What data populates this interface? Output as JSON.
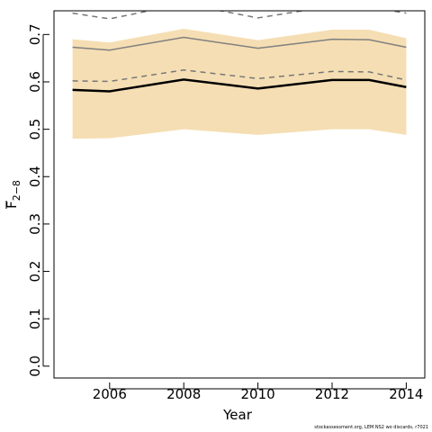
{
  "chart_data": {
    "type": "area",
    "xlabel": "Year",
    "ylabel_main": "F",
    "ylabel_sub": "2−8",
    "xlim": [
      2004.5,
      2014.5
    ],
    "ylim": [
      -0.025,
      0.75
    ],
    "xticks": [
      "2006",
      "2008",
      "2010",
      "2012",
      "2014"
    ],
    "yticks": [
      "0.0",
      "0.1",
      "0.2",
      "0.3",
      "0.4",
      "0.5",
      "0.6",
      "0.7"
    ],
    "x": [
      2005,
      2006,
      2008,
      2010,
      2012,
      2013,
      2014
    ],
    "band": {
      "lower": [
        0.48,
        0.481,
        0.5,
        0.488,
        0.5,
        0.5,
        0.488
      ],
      "upper": [
        0.69,
        0.683,
        0.712,
        0.688,
        0.71,
        0.71,
        0.692
      ],
      "color": "#f5deb3"
    },
    "series": [
      {
        "values": [
          0.583,
          0.58,
          0.605,
          0.586,
          0.604,
          0.604,
          0.589
        ],
        "color": "#000000",
        "style": "solid",
        "width": 2.5
      },
      {
        "values": [
          0.602,
          0.601,
          0.625,
          0.607,
          0.622,
          0.621,
          0.604
        ],
        "color": "#777777",
        "style": "dashed",
        "width": 1.5
      },
      {
        "values": [
          0.673,
          0.667,
          0.694,
          0.671,
          0.69,
          0.689,
          0.673
        ],
        "color": "#808080",
        "style": "solid",
        "width": 1.5
      },
      {
        "values": [
          0.745,
          0.733,
          0.765,
          0.735,
          0.76,
          0.758,
          0.745
        ],
        "color": "#777777",
        "style": "dashed",
        "width": 1.5
      }
    ]
  },
  "footer": "stockassessment.org, LEM NS2 wo discards, r7021"
}
